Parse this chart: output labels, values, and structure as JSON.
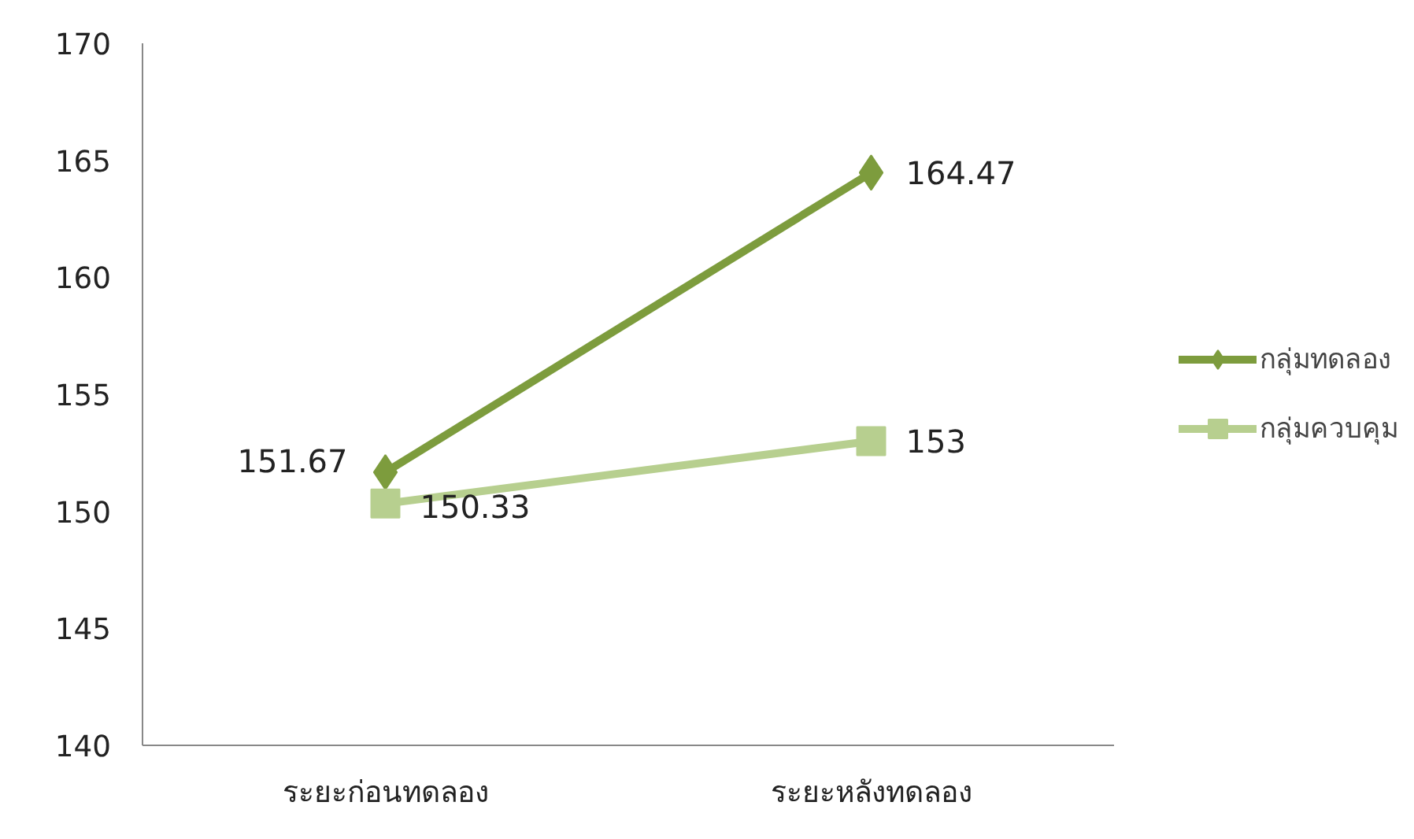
{
  "chart_data": {
    "type": "line",
    "categories": [
      "ระยะก่อนทดลอง",
      "ระยะหลังทดลอง"
    ],
    "series": [
      {
        "name": "กลุ่มทดลอง",
        "color": "#7d9c3d",
        "values": [
          151.67,
          164.47
        ],
        "marker": "diamond"
      },
      {
        "name": "กลุ่มควบคุม",
        "color": "#b7cf8f",
        "values": [
          150.33,
          153
        ],
        "marker": "square"
      }
    ],
    "ylim": [
      140,
      170
    ],
    "yticks": [
      140,
      145,
      150,
      155,
      160,
      165,
      170
    ],
    "grid": false,
    "legend": "right",
    "data_labels": true,
    "line_style": "solid"
  }
}
